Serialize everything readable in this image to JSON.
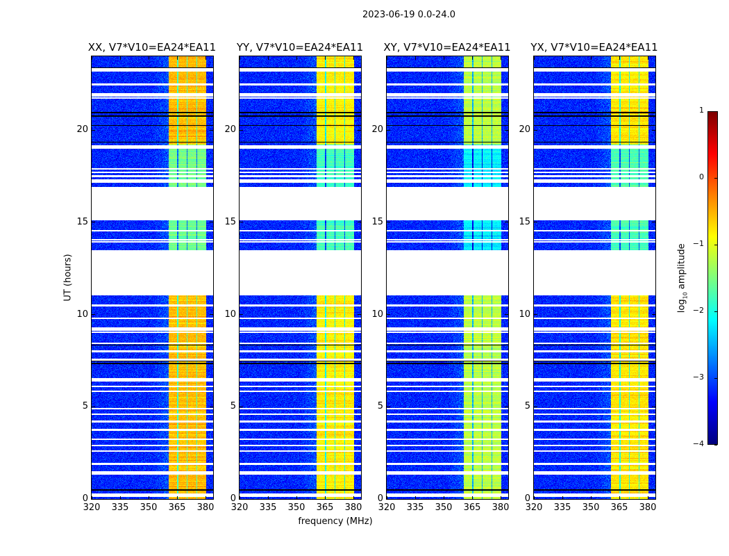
{
  "chart_data": {
    "type": "heatmap",
    "title": "2023-06-19 0.0-24.0",
    "xlabel": "frequency (MHz)",
    "ylabel": "UT (hours)",
    "xlim": [
      320,
      384
    ],
    "ylim": [
      0,
      24
    ],
    "xticks": [
      320,
      335,
      350,
      365,
      380
    ],
    "yticks": [
      0,
      5,
      10,
      15,
      20
    ],
    "colormap": "jet",
    "colorbar": {
      "label_prefix": "log",
      "label_sub": "10",
      "label_suffix": " amplitude",
      "range": [
        -4,
        1
      ],
      "ticks": [
        1,
        0,
        -1,
        -2,
        -3,
        -4
      ],
      "tick_labels": [
        "1",
        "0",
        "−1",
        "−2",
        "−3",
        "−4"
      ]
    },
    "background_level": -3.2,
    "rfi_band_mhz": [
      360.5,
      380.2
    ],
    "dark_channels_mhz": [
      365.5,
      370.3,
      375.4
    ],
    "weak_band_periods_ut": [
      [
        13.5,
        15.1
      ],
      [
        16.9,
        19.2
      ]
    ],
    "flagged_gaps_ut": [
      [
        11.05,
        13.5
      ],
      [
        15.1,
        16.9
      ]
    ],
    "flagged_rows_ut": [
      23.2,
      23.3,
      22.47,
      21.95,
      21.85,
      21.75,
      19.05,
      19.15,
      17.9,
      17.7,
      17.5,
      17.3,
      17.2,
      14.55,
      14.05,
      13.95,
      10.5,
      9.8,
      9.05,
      9.15,
      9.25,
      8.45,
      8.0,
      7.55,
      6.4,
      6.5,
      6.1,
      5.85,
      4.9,
      4.6,
      4.2,
      3.75,
      3.25,
      2.9,
      2.6,
      1.9,
      1.45,
      1.35,
      0.25,
      0.15
    ],
    "zero_rows_ut": [
      23.37,
      20.95,
      20.75,
      20.25,
      19.35,
      8.35,
      7.5,
      7.35,
      0.5
    ],
    "panels": [
      {
        "title": "XX, V7*V10=EA24*EA11",
        "band_level": -0.55
      },
      {
        "title": "YY, V7*V10=EA24*EA11",
        "band_level": -0.8
      },
      {
        "title": "XY, V7*V10=EA24*EA11",
        "band_level": -1.2
      },
      {
        "title": "YX, V7*V10=EA24*EA11",
        "band_level": -0.75
      }
    ]
  }
}
